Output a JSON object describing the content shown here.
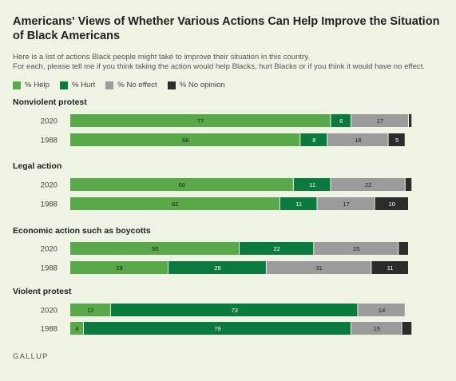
{
  "title": "Americans' Views of Whether Various Actions Can Help Improve the Situation of Black Americans",
  "subtitle_line1": "Here is a list of actions Black people might take to improve their situation in this country.",
  "subtitle_line2": "For each, please tell me if you think taking the action would help Blacks, hurt Blacks or if you think it would have no effect.",
  "source": "GALLUP",
  "colors": {
    "help": "#59a84a",
    "hurt": "#0a7a3e",
    "no_effect": "#9b9b9b",
    "no_opinion": "#2c2c2c"
  },
  "chart_data": {
    "type": "bar",
    "orientation": "horizontal",
    "stacked": true,
    "xlim": [
      0,
      100
    ],
    "series": [
      {
        "name": "% Help",
        "key": "help"
      },
      {
        "name": "% Hurt",
        "key": "hurt"
      },
      {
        "name": "% No effect",
        "key": "no_effect"
      },
      {
        "name": "% No opinion",
        "key": "no_opinion"
      }
    ],
    "groups": [
      {
        "label": "Nonviolent protest",
        "rows": [
          {
            "year": "2020",
            "values": [
              77,
              6,
              17,
              1
            ],
            "labels": [
              "77",
              "6",
              "17",
              ""
            ]
          },
          {
            "year": "1988",
            "values": [
              68,
              8,
              18,
              5
            ],
            "labels": [
              "68",
              "8",
              "18",
              "5"
            ]
          }
        ]
      },
      {
        "label": "Legal action",
        "rows": [
          {
            "year": "2020",
            "values": [
              66,
              11,
              22,
              2
            ],
            "labels": [
              "66",
              "11",
              "22",
              ""
            ]
          },
          {
            "year": "1988",
            "values": [
              62,
              11,
              17,
              10
            ],
            "labels": [
              "62",
              "11",
              "17",
              "10"
            ]
          }
        ]
      },
      {
        "label": "Economic action such as boycotts",
        "rows": [
          {
            "year": "2020",
            "values": [
              50,
              22,
              25,
              3
            ],
            "labels": [
              "50",
              "22",
              "25",
              ""
            ]
          },
          {
            "year": "1988",
            "values": [
              29,
              29,
              31,
              11
            ],
            "labels": [
              "29",
              "29",
              "31",
              "11"
            ]
          }
        ]
      },
      {
        "label": "Violent protest",
        "rows": [
          {
            "year": "2020",
            "values": [
              12,
              73,
              14,
              0
            ],
            "labels": [
              "12",
              "73",
              "14",
              ""
            ]
          },
          {
            "year": "1988",
            "values": [
              4,
              79,
              15,
              3
            ],
            "labels": [
              "4",
              "79",
              "15",
              ""
            ]
          }
        ]
      }
    ]
  }
}
